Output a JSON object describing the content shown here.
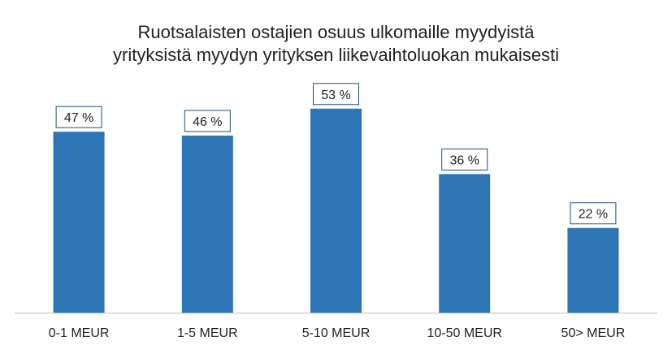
{
  "chart_data": {
    "type": "bar",
    "title": "Ruotsalaisten ostajien osuus ulkomaille myydyistä",
    "subtitle": "yrityksistä myydyn yrityksen liikevaihtoluokan mukaisesti",
    "categories": [
      "0-1 MEUR",
      "1-5 MEUR",
      "5-10 MEUR",
      "10-50 MEUR",
      "50> MEUR"
    ],
    "values": [
      47,
      46,
      53,
      36,
      22
    ],
    "value_labels": [
      "47 %",
      "46 %",
      "53 %",
      "36 %",
      "22 %"
    ],
    "ylim": [
      0,
      60
    ],
    "grid": false,
    "bar_color": "#2E75B6",
    "label_border_color": "#1F4E79"
  }
}
